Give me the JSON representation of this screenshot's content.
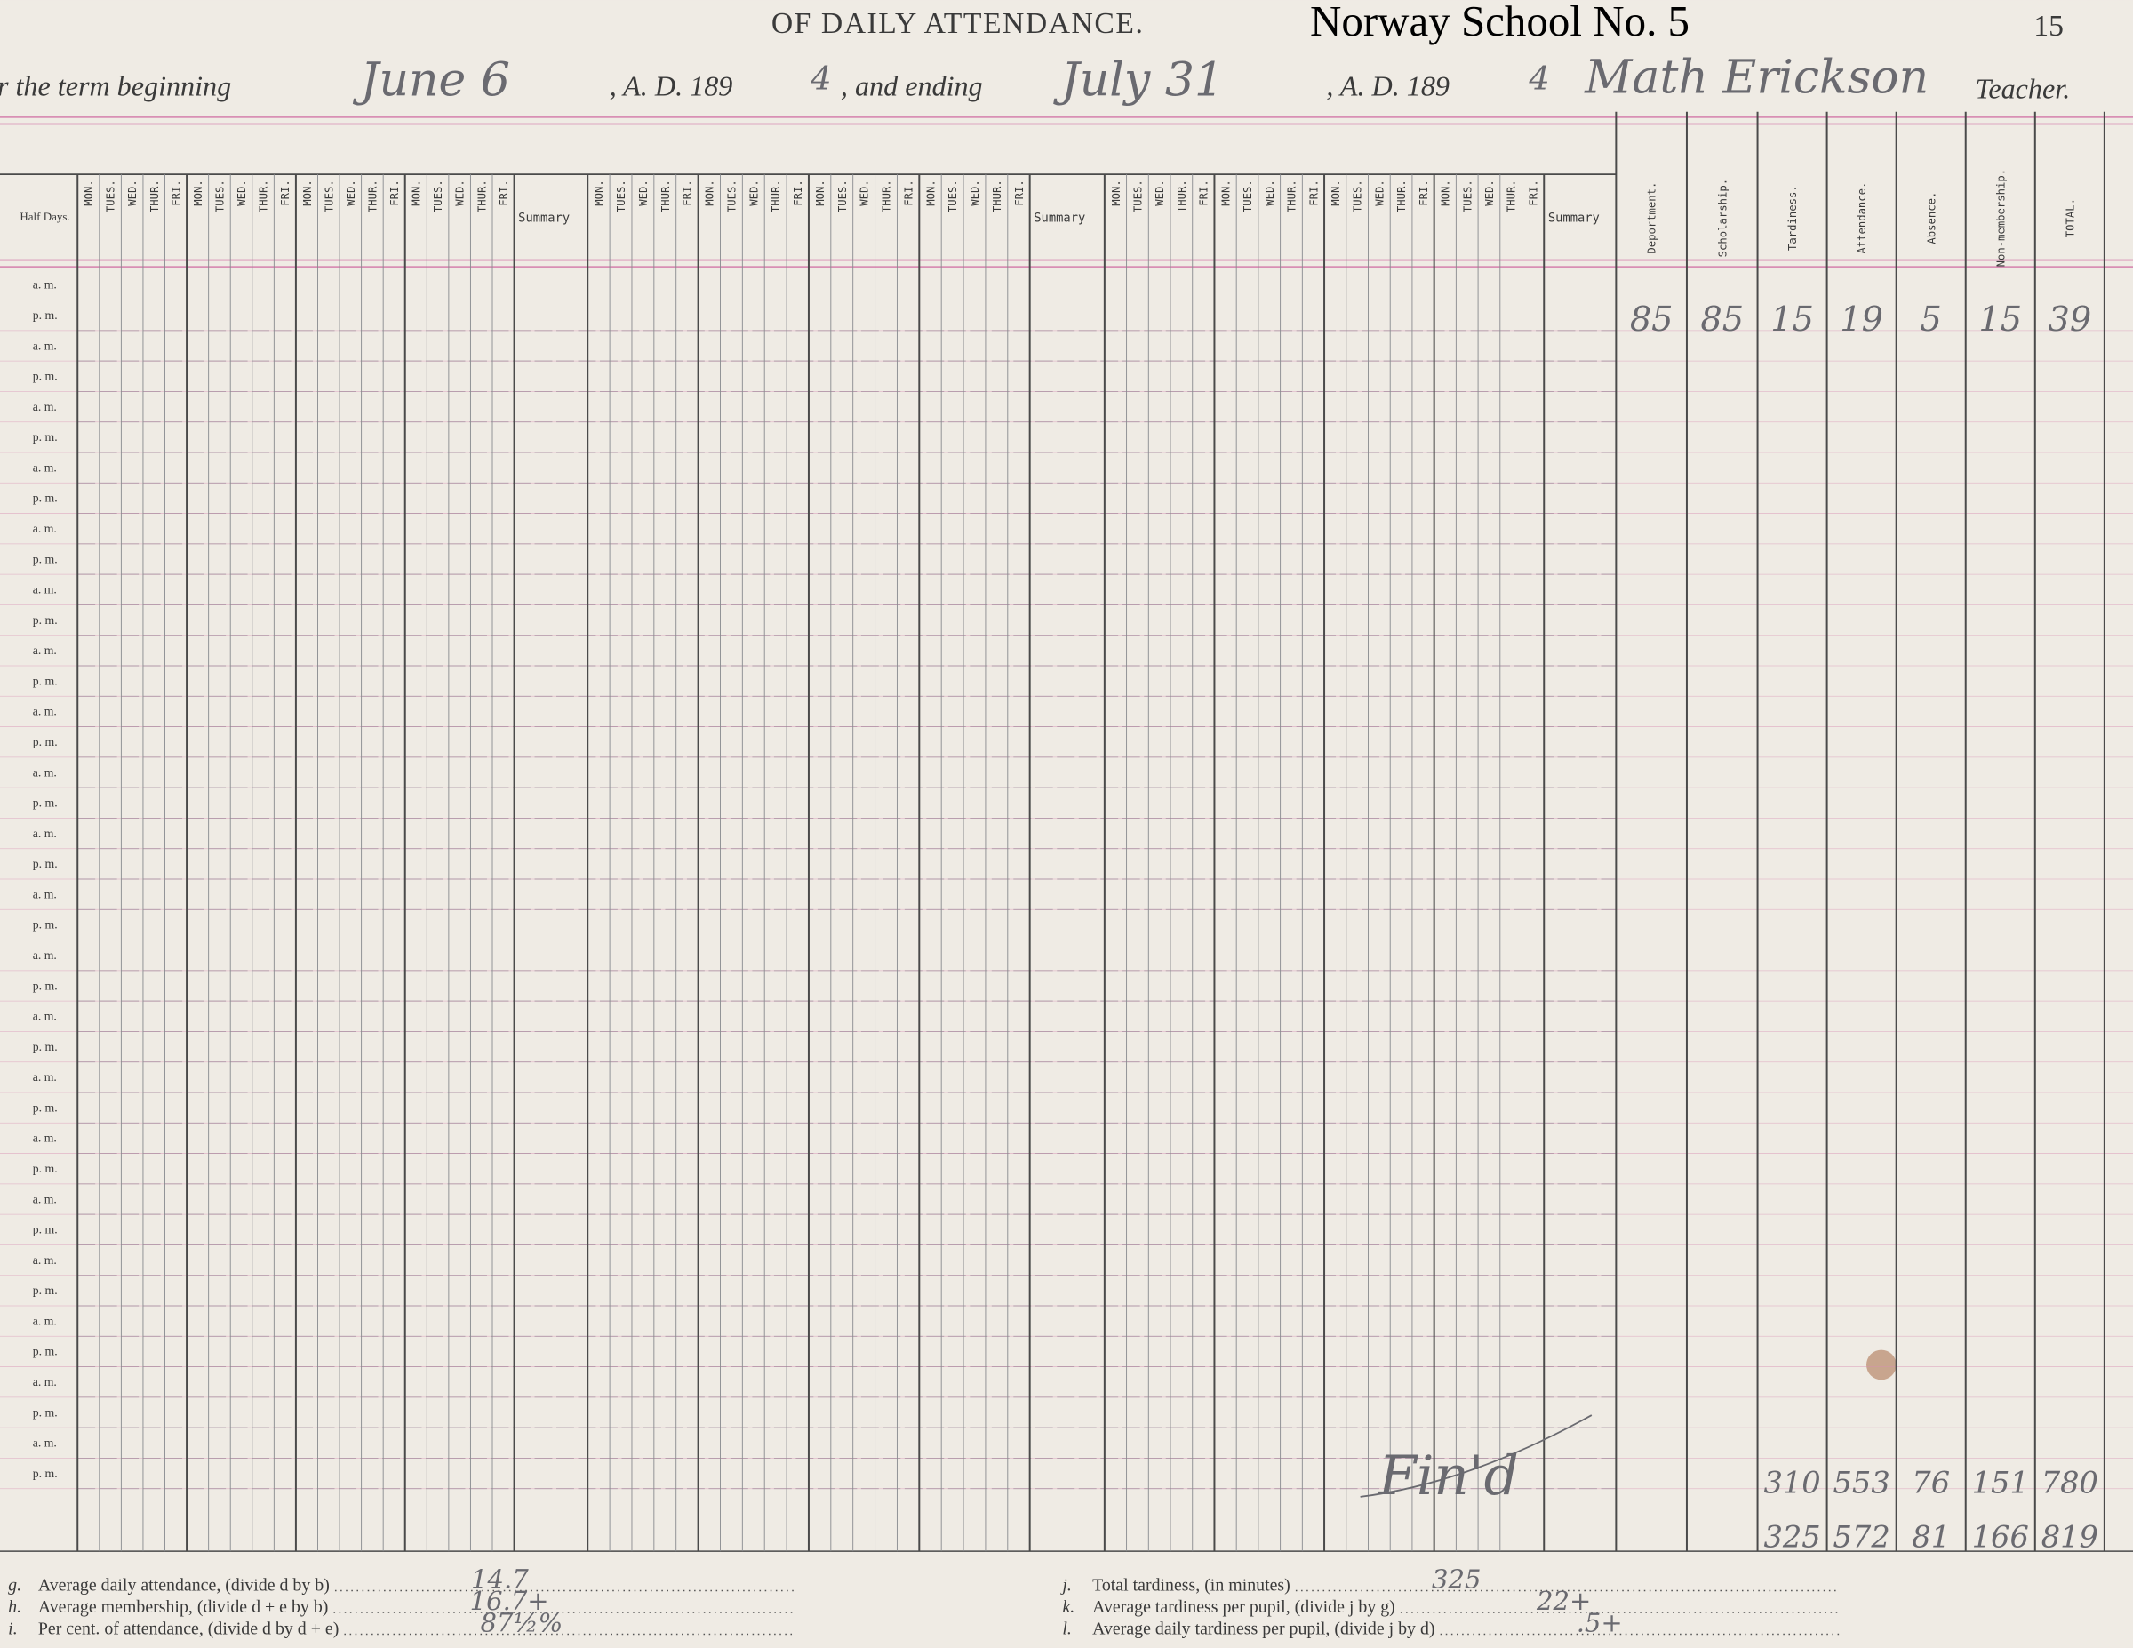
{
  "header": {
    "title": "OF DAILY ATTENDANCE.",
    "school": "Norway School No. 5",
    "page_number": "15"
  },
  "term": {
    "label_beginning": "r the term beginning",
    "begin_date": "June 6",
    "ad_1": ", A. D. 189",
    "year_1": "4",
    "label_ending": ", and ending",
    "end_date": "July 31",
    "ad_2": ", A. D. 189",
    "year_2": "4",
    "teacher_name": "Math Erickson",
    "label_teacher": "Teacher."
  },
  "register": {
    "half_days_heading": "Half Days.",
    "sections": [
      {
        "days": [
          "MON.",
          "TUES.",
          "WED.",
          "THUR.",
          "FRI.",
          "MON.",
          "TUES.",
          "WED.",
          "THUR.",
          "FRI.",
          "MON.",
          "TUES.",
          "WED.",
          "THUR.",
          "FRI.",
          "MON.",
          "TUES.",
          "WED.",
          "THUR.",
          "FRI."
        ],
        "summary": "Summary"
      },
      {
        "days": [
          "MON.",
          "TUES.",
          "WED.",
          "THUR.",
          "FRI.",
          "MON.",
          "TUES.",
          "WED.",
          "THUR.",
          "FRI.",
          "MON.",
          "TUES.",
          "WED.",
          "THUR.",
          "FRI.",
          "MON.",
          "TUES.",
          "WED.",
          "THUR.",
          "FRI."
        ],
        "summary": "Summary"
      },
      {
        "days": [
          "MON.",
          "TUES.",
          "WED.",
          "THUR.",
          "FRI.",
          "MON.",
          "TUES.",
          "WED.",
          "THUR.",
          "FRI.",
          "MON.",
          "TUES.",
          "WED.",
          "THUR.",
          "FRI.",
          "MON.",
          "TUES.",
          "WED.",
          "THUR.",
          "FRI."
        ],
        "summary": "Summary"
      }
    ],
    "half_days": [
      "a. m.",
      "p. m.",
      "a. m.",
      "p. m.",
      "a. m.",
      "p. m.",
      "a. m.",
      "p. m.",
      "a. m.",
      "p. m.",
      "a. m.",
      "p. m.",
      "a. m.",
      "p. m.",
      "a. m.",
      "p. m.",
      "a. m.",
      "p. m.",
      "a. m.",
      "p. m.",
      "a. m.",
      "p. m.",
      "a. m.",
      "p. m.",
      "a. m.",
      "p. m.",
      "a. m.",
      "p. m.",
      "a. m.",
      "p. m.",
      "a. m.",
      "p. m.",
      "a. m.",
      "p. m.",
      "a. m.",
      "p. m.",
      "a. m.",
      "p. m.",
      "a. m.",
      "p. m."
    ],
    "totals_headings": [
      "Deportment.",
      "Scholarship.",
      "Tardiness.",
      "Attendance.",
      "Absence.",
      "Non-membership.",
      "TOTAL."
    ],
    "pupil_row": [
      "85",
      "85",
      "15",
      "19",
      "5",
      "15",
      "39"
    ],
    "fin_note": "Fin'd",
    "totals_first": [
      "310",
      "553",
      "76",
      "151",
      "780"
    ],
    "totals_second": [
      "325",
      "572",
      "81",
      "166",
      "819"
    ]
  },
  "footer": {
    "left": [
      {
        "letter": "g.",
        "text": "Average daily attendance, (divide d by b)",
        "answer": "14.7"
      },
      {
        "letter": "h.",
        "text": "Average membership, (divide d + e by b)",
        "answer": "16.7+"
      },
      {
        "letter": "i.",
        "text": "Per cent. of attendance, (divide d by d + e)",
        "answer": "87½%"
      }
    ],
    "right": [
      {
        "letter": "j.",
        "text": "Total tardiness, (in minutes)",
        "answer": "325"
      },
      {
        "letter": "k.",
        "text": "Average tardiness per pupil, (divide j by g)",
        "answer": "22+"
      },
      {
        "letter": "l.",
        "text": "Average daily tardiness per pupil, (divide j by d)",
        "answer": ".5+"
      }
    ]
  }
}
